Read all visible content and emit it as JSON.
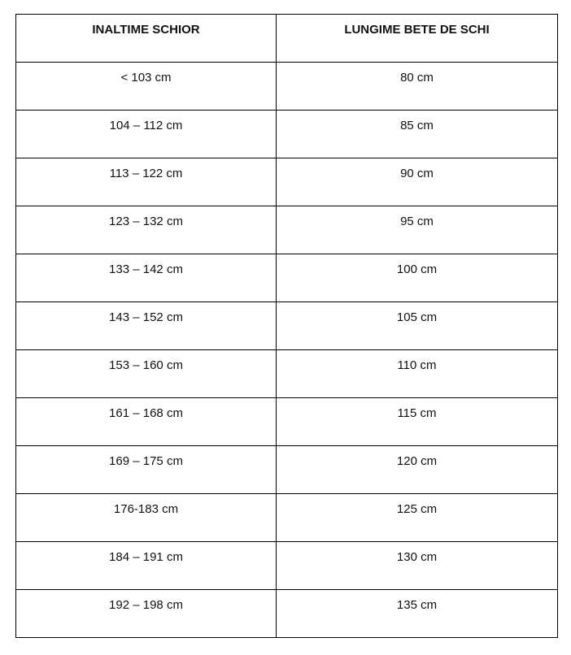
{
  "table": {
    "header": [
      "INALTIME SCHIOR",
      "LUNGIME BETE DE SCHI"
    ],
    "rows": [
      [
        "< 103 cm",
        "80 cm"
      ],
      [
        "104 – 112 cm",
        "85 cm"
      ],
      [
        "113 – 122 cm",
        "90 cm"
      ],
      [
        "123 – 132 cm",
        "95 cm"
      ],
      [
        "133 – 142 cm",
        "100 cm"
      ],
      [
        "143 – 152 cm",
        "105 cm"
      ],
      [
        "153 – 160 cm",
        "110 cm"
      ],
      [
        "161 – 168 cm",
        "115 cm"
      ],
      [
        "169 – 175 cm",
        "120 cm"
      ],
      [
        "176-183 cm",
        "125 cm"
      ],
      [
        "184 – 191 cm",
        "130 cm"
      ],
      [
        "192 – 198 cm",
        "135 cm"
      ]
    ]
  }
}
